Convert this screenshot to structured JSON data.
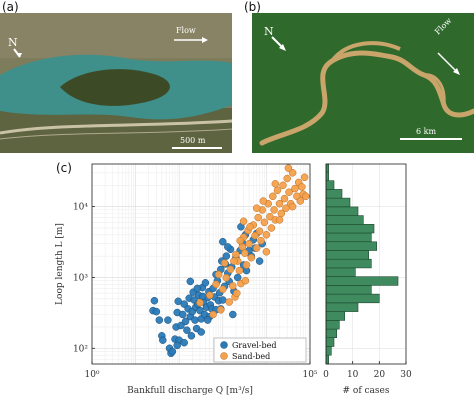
{
  "figure": {
    "panel_a": {
      "label": "(a)",
      "north_label": "N",
      "flow_label": "Flow",
      "scalebar_label": "500 m",
      "colors": {
        "vegetation": "#5d6b3c",
        "river": "#3f8f8a",
        "bare": "#9b8f73"
      }
    },
    "panel_b": {
      "label": "(b)",
      "north_label": "N",
      "flow_label": "Flow",
      "scalebar_label": "6 km",
      "colors": {
        "forest": "#2d6b2a",
        "river": "#c9a56b"
      }
    },
    "panel_c": {
      "label": "(c)"
    }
  },
  "chart_data": [
    {
      "type": "scatter",
      "xlabel": "Bankfull discharge Q [m³/s]",
      "ylabel": "Loop length L [m]",
      "xscale": "log",
      "yscale": "log",
      "xlim": [
        1,
        100000
      ],
      "ylim": [
        60,
        40000
      ],
      "x_ticks": [
        "10⁰",
        "10⁵"
      ],
      "y_ticks": [
        "10²",
        "10³",
        "10⁴"
      ],
      "grid": true,
      "legend_position": "bottom-right",
      "series": [
        {
          "name": "Gravel-bed",
          "color": "#2a7ab8",
          "points": [
            [
              25,
              340
            ],
            [
              27,
              470
            ],
            [
              30,
              330
            ],
            [
              35,
              250
            ],
            [
              40,
              150
            ],
            [
              42,
              130
            ],
            [
              55,
              250
            ],
            [
              60,
              100
            ],
            [
              65,
              85
            ],
            [
              70,
              90
            ],
            [
              80,
              135
            ],
            [
              85,
              200
            ],
            [
              90,
              320
            ],
            [
              95,
              460
            ],
            [
              100,
              130
            ],
            [
              110,
              210
            ],
            [
              120,
              300
            ],
            [
              130,
              420
            ],
            [
              140,
              240
            ],
            [
              150,
              180
            ],
            [
              160,
              360
            ],
            [
              170,
              510
            ],
            [
              180,
              280
            ],
            [
              190,
              150
            ],
            [
              200,
              330
            ],
            [
              210,
              620
            ],
            [
              220,
              480
            ],
            [
              230,
              250
            ],
            [
              240,
              380
            ],
            [
              250,
              190
            ],
            [
              270,
              420
            ],
            [
              280,
              560
            ],
            [
              300,
              340
            ],
            [
              320,
              260
            ],
            [
              340,
              720
            ],
            [
              360,
              450
            ],
            [
              380,
              300
            ],
            [
              400,
              840
            ],
            [
              420,
              380
            ],
            [
              450,
              520
            ],
            [
              480,
              630
            ],
            [
              500,
              280
            ],
            [
              520,
              410
            ],
            [
              560,
              360
            ],
            [
              600,
              700
            ],
            [
              650,
              530
            ],
            [
              700,
              1100
            ],
            [
              750,
              900
            ],
            [
              800,
              470
            ],
            [
              850,
              610
            ],
            [
              900,
              1300
            ],
            [
              950,
              1700
            ],
            [
              1000,
              480
            ],
            [
              1100,
              750
            ],
            [
              1150,
              1550
            ],
            [
              1200,
              2000
            ],
            [
              1300,
              1150
            ],
            [
              1400,
              880
            ],
            [
              1500,
              2500
            ],
            [
              1600,
              1400
            ],
            [
              1800,
              640
            ],
            [
              2000,
              1900
            ],
            [
              2200,
              1000
            ],
            [
              2500,
              2400
            ],
            [
              2800,
              3100
            ],
            [
              3000,
              1500
            ],
            [
              3500,
              1250
            ],
            [
              4000,
              2400
            ],
            [
              4500,
              2000
            ],
            [
              5000,
              3400
            ],
            [
              5500,
              2600
            ],
            [
              6000,
              4200
            ],
            [
              7000,
              1700
            ],
            [
              8000,
              3000
            ],
            [
              900,
              360
            ],
            [
              350,
              540
            ],
            [
              260,
              700
            ],
            [
              180,
              880
            ],
            [
              1700,
              300
            ],
            [
              700,
              350
            ],
            [
              450,
              250
            ],
            [
              320,
              170
            ],
            [
              130,
              120
            ],
            [
              90,
              110
            ],
            [
              1300,
              2700
            ],
            [
              2600,
              5200
            ],
            [
              3300,
              4000
            ],
            [
              1000,
              3200
            ]
          ]
        },
        {
          "name": "Sand-bed",
          "color": "#f5a04b",
          "points": [
            [
              300,
              440
            ],
            [
              500,
              560
            ],
            [
              700,
              800
            ],
            [
              900,
              350
            ],
            [
              1000,
              680
            ],
            [
              1200,
              990
            ],
            [
              1400,
              450
            ],
            [
              1500,
              1300
            ],
            [
              1700,
              760
            ],
            [
              1900,
              530
            ],
            [
              2000,
              2100
            ],
            [
              2200,
              1700
            ],
            [
              2400,
              1250
            ],
            [
              2600,
              820
            ],
            [
              2800,
              2700
            ],
            [
              3000,
              3700
            ],
            [
              3200,
              2200
            ],
            [
              3500,
              1500
            ],
            [
              3800,
              4600
            ],
            [
              4000,
              3000
            ],
            [
              4500,
              1900
            ],
            [
              5000,
              5500
            ],
            [
              5500,
              3900
            ],
            [
              6000,
              2600
            ],
            [
              6500,
              7000
            ],
            [
              7000,
              4500
            ],
            [
              7500,
              3300
            ],
            [
              8000,
              9000
            ],
            [
              9000,
              6000
            ],
            [
              10000,
              4000
            ],
            [
              11000,
              11000
            ],
            [
              12000,
              7200
            ],
            [
              13000,
              5000
            ],
            [
              14000,
              14000
            ],
            [
              15000,
              9000
            ],
            [
              16000,
              6500
            ],
            [
              18000,
              17000
            ],
            [
              20000,
              11000
            ],
            [
              22000,
              8000
            ],
            [
              24000,
              20000
            ],
            [
              26000,
              13000
            ],
            [
              28000,
              9500
            ],
            [
              30000,
              25000
            ],
            [
              33000,
              16000
            ],
            [
              36000,
              11000
            ],
            [
              40000,
              30000
            ],
            [
              45000,
              18000
            ],
            [
              50000,
              14000
            ],
            [
              55000,
              22000
            ],
            [
              60000,
              12000
            ],
            [
              65000,
              19000
            ],
            [
              70000,
              15000
            ],
            [
              75000,
              26000
            ],
            [
              80000,
              14000
            ],
            [
              40000,
              10000
            ],
            [
              20000,
              6500
            ],
            [
              10000,
              2300
            ],
            [
              6000,
              9500
            ],
            [
              3000,
              6200
            ],
            [
              2500,
              3300
            ],
            [
              1800,
              1700
            ],
            [
              1100,
              1600
            ],
            [
              800,
              1100
            ],
            [
              600,
              300
            ],
            [
              4200,
              5200
            ],
            [
              8500,
              12000
            ],
            [
              16000,
              21000
            ],
            [
              32000,
              35000
            ],
            [
              3300,
              900
            ],
            [
              2100,
              600
            ]
          ]
        }
      ]
    },
    {
      "type": "bar",
      "orientation": "horizontal",
      "xlabel": "# of cases",
      "x_ticks": [
        "0",
        "10",
        "20",
        "30"
      ],
      "xlim": [
        0,
        30
      ],
      "color": "#3f8a5f",
      "bins": [
        {
          "y0": 60,
          "y1": 80,
          "count": 1
        },
        {
          "y0": 80,
          "y1": 106,
          "count": 2
        },
        {
          "y0": 106,
          "y1": 141,
          "count": 3
        },
        {
          "y0": 141,
          "y1": 187,
          "count": 4
        },
        {
          "y0": 187,
          "y1": 248,
          "count": 5
        },
        {
          "y0": 248,
          "y1": 330,
          "count": 7
        },
        {
          "y0": 330,
          "y1": 438,
          "count": 12
        },
        {
          "y0": 438,
          "y1": 582,
          "count": 20
        },
        {
          "y0": 582,
          "y1": 773,
          "count": 17
        },
        {
          "y0": 773,
          "y1": 1026,
          "count": 27
        },
        {
          "y0": 1026,
          "y1": 1363,
          "count": 11
        },
        {
          "y0": 1363,
          "y1": 1810,
          "count": 17
        },
        {
          "y0": 1810,
          "y1": 2403,
          "count": 16
        },
        {
          "y0": 2403,
          "y1": 3192,
          "count": 19
        },
        {
          "y0": 3192,
          "y1": 4239,
          "count": 17
        },
        {
          "y0": 4239,
          "y1": 5629,
          "count": 18
        },
        {
          "y0": 5629,
          "y1": 7475,
          "count": 14
        },
        {
          "y0": 7475,
          "y1": 9927,
          "count": 12
        },
        {
          "y0": 9927,
          "y1": 13183,
          "count": 9
        },
        {
          "y0": 13183,
          "y1": 17507,
          "count": 6
        },
        {
          "y0": 17507,
          "y1": 23249,
          "count": 3
        },
        {
          "y0": 23249,
          "y1": 30874,
          "count": 1
        },
        {
          "y0": 30874,
          "y1": 40000,
          "count": 1
        }
      ]
    }
  ]
}
